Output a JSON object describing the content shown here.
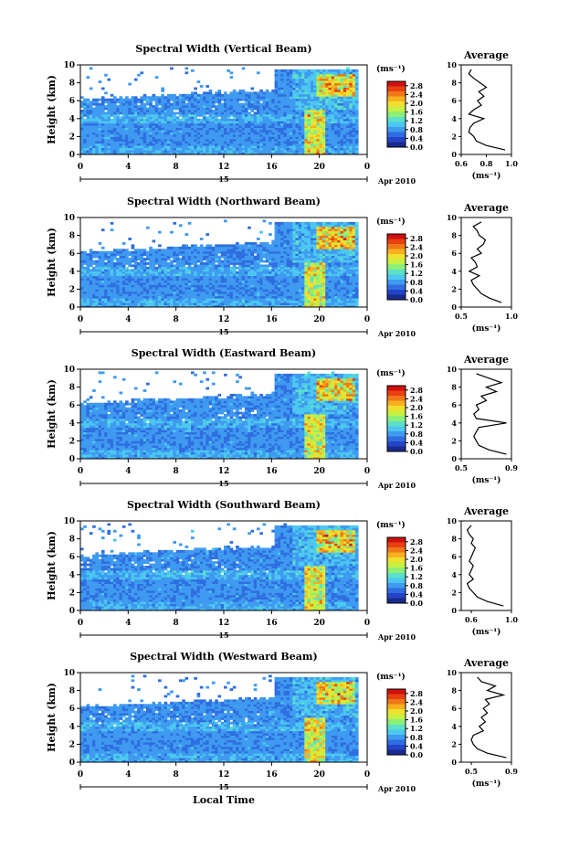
{
  "xlabel": "Local Time",
  "date_day": "15",
  "date_month_year": "Apr 2010",
  "ylabel": "Height (km)",
  "cbar_unit": "(ms⁻¹)",
  "avg_title": "Average",
  "avg_unit": "(ms⁻¹)",
  "colorscale": [
    "#1a2a8c",
    "#2344c8",
    "#2f6ee0",
    "#3f9af0",
    "#4cc8f0",
    "#5ce0c8",
    "#8cf078",
    "#c8f040",
    "#f0e030",
    "#f8b020",
    "#f07818",
    "#e84010",
    "#d01010"
  ],
  "chart_data": [
    {
      "type": "heatmap",
      "title": "Spectral Width (Vertical Beam)",
      "x_ticks": [
        "0",
        "4",
        "8",
        "12",
        "16",
        "20",
        "0"
      ],
      "xlim": [
        0,
        24
      ],
      "ylim": [
        0,
        10
      ],
      "y_ticks": [
        "0",
        "2",
        "4",
        "6",
        "8",
        "10"
      ],
      "cbar_ticks": [
        "0.0",
        "0.4",
        "0.8",
        "1.2",
        "1.6",
        "2.0",
        "2.4",
        "2.8"
      ],
      "cbar_range": [
        0,
        3.0
      ],
      "avg_profile": {
        "xlim": [
          0.6,
          1.0
        ],
        "x_ticks": [
          "0.6",
          "0.8",
          "1.0"
        ],
        "height": [
          0.5,
          1,
          1.5,
          2,
          2.5,
          3,
          3.5,
          4,
          4.5,
          5,
          5.5,
          6,
          6.5,
          7,
          7.5,
          8,
          8.5,
          9,
          9.5
        ],
        "value": [
          0.95,
          0.8,
          0.72,
          0.7,
          0.66,
          0.67,
          0.7,
          0.78,
          0.66,
          0.7,
          0.76,
          0.73,
          0.78,
          0.74,
          0.8,
          0.75,
          0.7,
          0.66,
          0.68
        ]
      }
    },
    {
      "type": "heatmap",
      "title": "Spectral Width (Northward Beam)",
      "x_ticks": [
        "0",
        "4",
        "8",
        "12",
        "16",
        "20",
        "0"
      ],
      "xlim": [
        0,
        24
      ],
      "ylim": [
        0,
        10
      ],
      "y_ticks": [
        "0",
        "2",
        "4",
        "6",
        "8",
        "10"
      ],
      "cbar_ticks": [
        "0.0",
        "0.4",
        "0.8",
        "1.2",
        "1.6",
        "2.0",
        "2.4",
        "2.8"
      ],
      "cbar_range": [
        0,
        3.0
      ],
      "avg_profile": {
        "xlim": [
          0.5,
          1.0
        ],
        "x_ticks": [
          "0.5",
          "1.0"
        ],
        "height": [
          0.5,
          1,
          1.5,
          2,
          2.5,
          3,
          3.5,
          4,
          4.5,
          5,
          5.5,
          6,
          6.5,
          7,
          7.5,
          8,
          8.5,
          9,
          9.5
        ],
        "value": [
          0.9,
          0.78,
          0.7,
          0.66,
          0.62,
          0.6,
          0.68,
          0.58,
          0.66,
          0.64,
          0.6,
          0.7,
          0.66,
          0.72,
          0.74,
          0.68,
          0.66,
          0.62,
          0.7
        ]
      }
    },
    {
      "type": "heatmap",
      "title": "Spectral Width (Eastward Beam)",
      "x_ticks": [
        "0",
        "4",
        "8",
        "12",
        "16",
        "20",
        "0"
      ],
      "xlim": [
        0,
        24
      ],
      "ylim": [
        0,
        10
      ],
      "y_ticks": [
        "0",
        "2",
        "4",
        "6",
        "8",
        "10"
      ],
      "cbar_ticks": [
        "0.0",
        "0.4",
        "0.8",
        "1.2",
        "1.6",
        "2.0",
        "2.4",
        "2.8"
      ],
      "cbar_range": [
        0,
        3.0
      ],
      "avg_profile": {
        "xlim": [
          0.5,
          0.9
        ],
        "x_ticks": [
          "0.5",
          "0.9"
        ],
        "height": [
          0.5,
          1,
          1.5,
          2,
          2.5,
          3,
          3.5,
          4,
          4.5,
          5,
          5.5,
          6,
          6.5,
          7,
          7.5,
          8,
          8.5,
          9,
          9.5
        ],
        "value": [
          0.86,
          0.72,
          0.64,
          0.62,
          0.6,
          0.62,
          0.64,
          0.86,
          0.62,
          0.6,
          0.64,
          0.62,
          0.7,
          0.66,
          0.78,
          0.7,
          0.82,
          0.72,
          0.62
        ]
      }
    },
    {
      "type": "heatmap",
      "title": "Spectral Width (Southward Beam)",
      "x_ticks": [
        "0",
        "4",
        "8",
        "12",
        "16",
        "20",
        "0"
      ],
      "xlim": [
        0,
        24
      ],
      "ylim": [
        0,
        10
      ],
      "y_ticks": [
        "0",
        "2",
        "4",
        "6",
        "8",
        "10"
      ],
      "cbar_ticks": [
        "0.0",
        "0.4",
        "0.8",
        "1.2",
        "1.6",
        "2.0",
        "2.4",
        "2.8"
      ],
      "cbar_range": [
        0,
        3.0
      ],
      "avg_profile": {
        "xlim": [
          0.5,
          1.0
        ],
        "x_ticks": [
          "0.6",
          "1.0"
        ],
        "height": [
          0.5,
          1,
          1.5,
          2,
          2.5,
          3,
          3.5,
          4,
          4.5,
          5,
          5.5,
          6,
          6.5,
          7,
          7.5,
          8,
          8.5,
          9,
          9.5
        ],
        "value": [
          0.92,
          0.76,
          0.66,
          0.62,
          0.58,
          0.56,
          0.62,
          0.58,
          0.6,
          0.62,
          0.58,
          0.6,
          0.62,
          0.64,
          0.6,
          0.62,
          0.58,
          0.56,
          0.6
        ]
      }
    },
    {
      "type": "heatmap",
      "title": "Spectral Width (Westward Beam)",
      "x_ticks": [
        "0",
        "4",
        "8",
        "12",
        "16",
        "20",
        "0"
      ],
      "xlim": [
        0,
        24
      ],
      "ylim": [
        0,
        10
      ],
      "y_ticks": [
        "0",
        "2",
        "4",
        "6",
        "8",
        "10"
      ],
      "cbar_ticks": [
        "0.0",
        "0.4",
        "0.8",
        "1.2",
        "1.6",
        "2.0",
        "2.4",
        "2.8"
      ],
      "cbar_range": [
        0,
        3.0
      ],
      "avg_profile": {
        "xlim": [
          0.4,
          0.9
        ],
        "x_ticks": [
          "0.5",
          "0.9"
        ],
        "height": [
          0.5,
          1,
          1.5,
          2,
          2.5,
          3,
          3.5,
          4,
          4.5,
          5,
          5.5,
          6,
          6.5,
          7,
          7.5,
          8,
          8.5,
          9,
          9.5
        ],
        "value": [
          0.85,
          0.66,
          0.56,
          0.52,
          0.5,
          0.52,
          0.62,
          0.58,
          0.64,
          0.6,
          0.66,
          0.62,
          0.68,
          0.64,
          0.82,
          0.66,
          0.74,
          0.6,
          0.56
        ]
      }
    }
  ]
}
